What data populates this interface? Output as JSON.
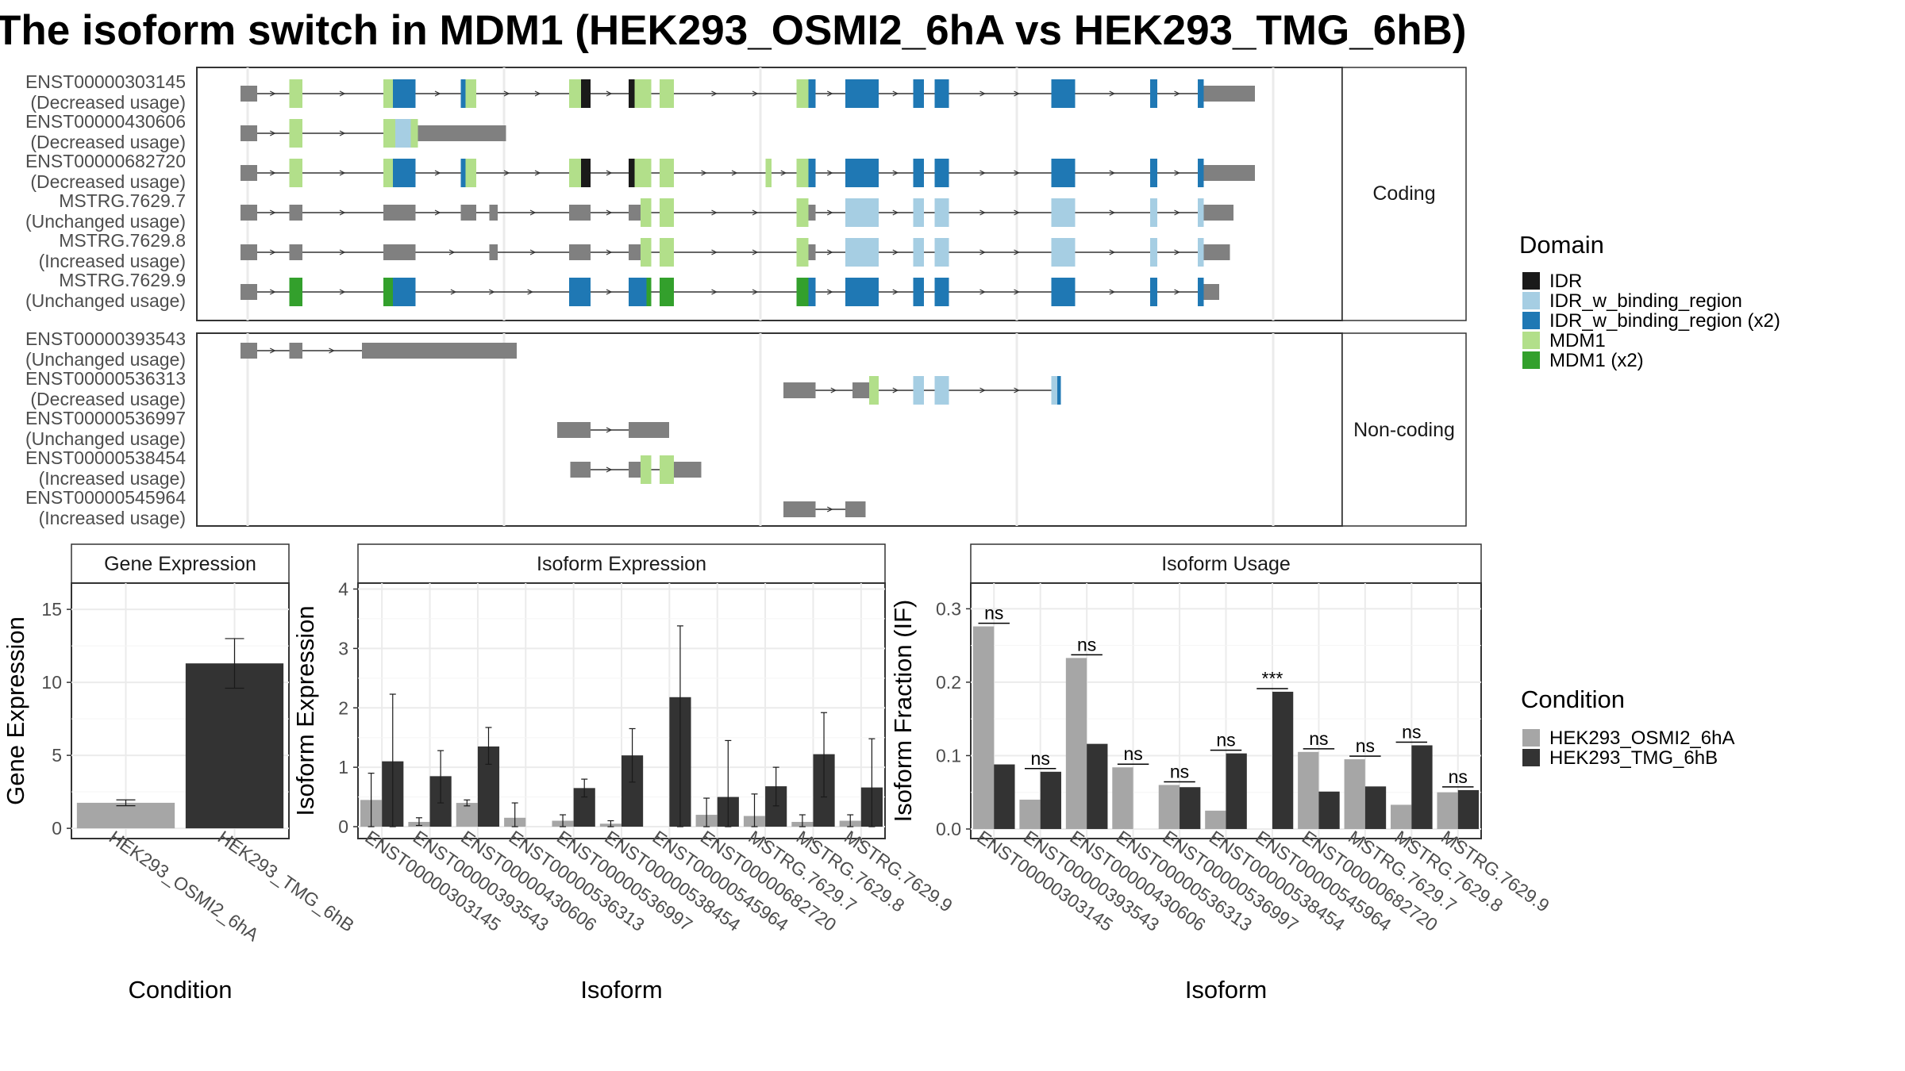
{
  "title": "The isoform switch in MDM1 (HEK293_OSMI2_6hA vs HEK293_TMG_6hB)",
  "colors": {
    "IDR": "#1a1a1a",
    "IDR_w_binding_region": "#a6cee3",
    "IDR_w_binding_region (x2)": "#1f78b4",
    "MDM1": "#b2df8a",
    "MDM1 (x2)": "#33a02c",
    "exon": "#808080",
    "cond_A": "#a6a6a6",
    "cond_B": "#333333"
  },
  "domain_legend": {
    "title": "Domain",
    "items": [
      {
        "label": "IDR",
        "color_key": "IDR"
      },
      {
        "label": "IDR_w_binding_region",
        "color_key": "IDR_w_binding_region"
      },
      {
        "label": "IDR_w_binding_region (x2)",
        "color_key": "IDR_w_binding_region (x2)"
      },
      {
        "label": "MDM1",
        "color_key": "MDM1"
      },
      {
        "label": "MDM1 (x2)",
        "color_key": "MDM1 (x2)"
      }
    ]
  },
  "condition_legend": {
    "title": "Condition",
    "items": [
      {
        "label": "HEK293_OSMI2_6hA",
        "color_key": "cond_A"
      },
      {
        "label": "HEK293_TMG_6hB",
        "color_key": "cond_B"
      }
    ]
  },
  "structure_panels": [
    {
      "label": "Coding"
    },
    {
      "label": "Non-coding"
    }
  ],
  "transcripts": [
    {
      "panel": 0,
      "name": "ENST00000303145",
      "usage": "(Decreased usage)",
      "span": [
        212,
        1054
      ],
      "exons": [
        [
          202,
          216
        ],
        [
          243,
          254
        ],
        [
          322,
          330
        ],
        [
          330,
          349
        ],
        [
          387,
          391
        ],
        [
          391,
          400
        ],
        [
          478,
          488
        ],
        [
          488,
          496
        ],
        [
          528,
          533
        ],
        [
          533,
          547
        ],
        [
          554,
          566
        ],
        [
          669,
          679
        ],
        [
          679,
          685
        ],
        [
          710,
          738
        ],
        [
          767,
          776
        ],
        [
          785,
          797
        ],
        [
          883,
          903
        ],
        [
          966,
          972
        ],
        [
          1006,
          1011
        ],
        [
          1011,
          1018
        ],
        [
          1018,
          1054
        ]
      ],
      "colors": [
        "exon",
        "MDM1",
        "MDM1",
        "IDR_w_binding_region (x2)",
        "IDR_w_binding_region (x2)",
        "MDM1",
        "MDM1",
        "IDR",
        "IDR",
        "MDM1",
        "MDM1",
        "MDM1",
        "IDR_w_binding_region (x2)",
        "IDR_w_binding_region (x2)",
        "IDR_w_binding_region (x2)",
        "IDR_w_binding_region (x2)",
        "IDR_w_binding_region (x2)",
        "IDR_w_binding_region (x2)",
        "IDR_w_binding_region (x2)",
        "exon",
        "exon"
      ]
    },
    {
      "panel": 0,
      "name": "ENST00000430606",
      "usage": "(Decreased usage)",
      "span": [
        212,
        425
      ],
      "exons": [
        [
          202,
          216
        ],
        [
          243,
          254
        ],
        [
          322,
          332
        ],
        [
          332,
          345
        ],
        [
          345,
          351
        ],
        [
          351,
          362
        ],
        [
          362,
          425
        ]
      ],
      "colors": [
        "exon",
        "MDM1",
        "MDM1",
        "IDR_w_binding_region",
        "MDM1",
        "exon",
        "exon"
      ]
    },
    {
      "panel": 0,
      "name": "ENST00000682720",
      "usage": "(Decreased usage)",
      "span": [
        212,
        1054
      ],
      "exons": [
        [
          202,
          216
        ],
        [
          243,
          254
        ],
        [
          322,
          330
        ],
        [
          330,
          349
        ],
        [
          387,
          391
        ],
        [
          391,
          400
        ],
        [
          478,
          488
        ],
        [
          488,
          496
        ],
        [
          528,
          533
        ],
        [
          533,
          547
        ],
        [
          554,
          566
        ],
        [
          643,
          648
        ],
        [
          669,
          679
        ],
        [
          679,
          685
        ],
        [
          710,
          738
        ],
        [
          767,
          776
        ],
        [
          785,
          797
        ],
        [
          883,
          903
        ],
        [
          966,
          972
        ],
        [
          1006,
          1011
        ],
        [
          1011,
          1018
        ],
        [
          1018,
          1054
        ]
      ],
      "colors": [
        "exon",
        "MDM1",
        "MDM1",
        "IDR_w_binding_region (x2)",
        "IDR_w_binding_region (x2)",
        "MDM1",
        "MDM1",
        "IDR",
        "IDR",
        "MDM1",
        "MDM1",
        "MDM1",
        "MDM1",
        "IDR_w_binding_region (x2)",
        "IDR_w_binding_region (x2)",
        "IDR_w_binding_region (x2)",
        "IDR_w_binding_region (x2)",
        "IDR_w_binding_region (x2)",
        "IDR_w_binding_region (x2)",
        "IDR_w_binding_region (x2)",
        "exon",
        "exon"
      ]
    },
    {
      "panel": 0,
      "name": "MSTRG.7629.7",
      "usage": "(Unchanged usage)",
      "span": [
        212,
        1036
      ],
      "exons": [
        [
          202,
          216
        ],
        [
          243,
          254
        ],
        [
          322,
          349
        ],
        [
          387,
          400
        ],
        [
          411,
          418
        ],
        [
          478,
          496
        ],
        [
          528,
          538
        ],
        [
          538,
          547
        ],
        [
          554,
          566
        ],
        [
          669,
          679
        ],
        [
          679,
          685
        ],
        [
          710,
          738
        ],
        [
          767,
          776
        ],
        [
          785,
          797
        ],
        [
          883,
          903
        ],
        [
          966,
          972
        ],
        [
          1006,
          1011
        ],
        [
          1011,
          1036
        ]
      ],
      "colors": [
        "exon",
        "exon",
        "exon",
        "exon",
        "exon",
        "exon",
        "exon",
        "MDM1",
        "MDM1",
        "MDM1",
        "exon",
        "IDR_w_binding_region",
        "IDR_w_binding_region",
        "IDR_w_binding_region",
        "IDR_w_binding_region",
        "IDR_w_binding_region",
        "IDR_w_binding_region",
        "exon"
      ]
    },
    {
      "panel": 0,
      "name": "MSTRG.7629.8",
      "usage": "(Increased usage)",
      "span": [
        212,
        1033
      ],
      "exons": [
        [
          202,
          216
        ],
        [
          243,
          254
        ],
        [
          322,
          349
        ],
        [
          411,
          418
        ],
        [
          478,
          496
        ],
        [
          528,
          538
        ],
        [
          538,
          547
        ],
        [
          554,
          566
        ],
        [
          669,
          679
        ],
        [
          679,
          685
        ],
        [
          710,
          738
        ],
        [
          767,
          776
        ],
        [
          785,
          797
        ],
        [
          883,
          903
        ],
        [
          966,
          972
        ],
        [
          1006,
          1011
        ],
        [
          1011,
          1033
        ]
      ],
      "colors": [
        "exon",
        "exon",
        "exon",
        "exon",
        "exon",
        "exon",
        "MDM1",
        "MDM1",
        "MDM1",
        "exon",
        "IDR_w_binding_region",
        "IDR_w_binding_region",
        "IDR_w_binding_region",
        "IDR_w_binding_region",
        "IDR_w_binding_region",
        "IDR_w_binding_region",
        "exon"
      ]
    },
    {
      "panel": 0,
      "name": "MSTRG.7629.9",
      "usage": "(Unchanged usage)",
      "span": [
        212,
        1024
      ],
      "exons": [
        [
          202,
          216
        ],
        [
          243,
          254
        ],
        [
          322,
          330
        ],
        [
          330,
          349
        ],
        [
          478,
          496
        ],
        [
          528,
          543
        ],
        [
          543,
          547
        ],
        [
          554,
          566
        ],
        [
          669,
          679
        ],
        [
          679,
          685
        ],
        [
          710,
          738
        ],
        [
          767,
          776
        ],
        [
          785,
          797
        ],
        [
          883,
          903
        ],
        [
          966,
          972
        ],
        [
          1006,
          1011
        ],
        [
          1011,
          1024
        ]
      ],
      "colors": [
        "exon",
        "MDM1 (x2)",
        "MDM1 (x2)",
        "IDR_w_binding_region (x2)",
        "IDR_w_binding_region (x2)",
        "IDR_w_binding_region (x2)",
        "MDM1 (x2)",
        "MDM1 (x2)",
        "MDM1 (x2)",
        "IDR_w_binding_region (x2)",
        "IDR_w_binding_region (x2)",
        "IDR_w_binding_region (x2)",
        "IDR_w_binding_region (x2)",
        "IDR_w_binding_region (x2)",
        "IDR_w_binding_region (x2)",
        "IDR_w_binding_region (x2)",
        "exon"
      ]
    },
    {
      "panel": 1,
      "name": "ENST00000393543",
      "usage": "(Unchanged usage)",
      "span": [
        212,
        434
      ],
      "exons": [
        [
          202,
          216
        ],
        [
          243,
          254
        ],
        [
          304,
          434
        ]
      ],
      "colors": [
        "exon",
        "exon",
        "exon"
      ]
    },
    {
      "panel": 1,
      "name": "ENST00000536313",
      "usage": "(Decreased usage)",
      "span": [
        685,
        891
      ],
      "exons": [
        [
          658,
          685
        ],
        [
          716,
          730
        ],
        [
          730,
          738
        ],
        [
          767,
          776
        ],
        [
          785,
          797
        ],
        [
          883,
          888
        ],
        [
          888,
          891
        ]
      ],
      "colors": [
        "exon",
        "exon",
        "MDM1",
        "IDR_w_binding_region",
        "IDR_w_binding_region",
        "IDR_w_binding_region",
        "IDR_w_binding_region (x2)"
      ]
    },
    {
      "panel": 1,
      "name": "ENST00000536997",
      "usage": "(Unchanged usage)",
      "span": [
        496,
        562
      ],
      "exons": [
        [
          468,
          496
        ],
        [
          528,
          562
        ]
      ],
      "colors": [
        "exon",
        "exon"
      ]
    },
    {
      "panel": 1,
      "name": "ENST00000538454",
      "usage": "(Increased usage)",
      "span": [
        496,
        589
      ],
      "exons": [
        [
          479,
          496
        ],
        [
          528,
          538
        ],
        [
          538,
          547
        ],
        [
          554,
          566
        ],
        [
          566,
          573
        ],
        [
          573,
          589
        ]
      ],
      "colors": [
        "exon",
        "exon",
        "MDM1",
        "MDM1",
        "exon",
        "exon"
      ]
    },
    {
      "panel": 1,
      "name": "ENST00000545964",
      "usage": "(Increased usage)",
      "span": [
        685,
        727
      ],
      "exons": [
        [
          658,
          685
        ],
        [
          710,
          727
        ]
      ],
      "colors": [
        "exon",
        "exon"
      ]
    }
  ],
  "chart_data": [
    {
      "type": "bar",
      "title": "Gene Expression",
      "xlabel": "Condition",
      "ylabel": "Gene Expression",
      "categories": [
        "HEK293_OSMI2_6hA",
        "HEK293_TMG_6hB"
      ],
      "values": [
        1.75,
        11.3
      ],
      "errors": [
        [
          1.55,
          1.95
        ],
        [
          9.6,
          13.0
        ]
      ],
      "ylim": [
        -0.7,
        16.8
      ],
      "yticks": [
        0,
        5,
        10,
        15
      ]
    },
    {
      "type": "bar",
      "title": "Isoform Expression",
      "xlabel": "Isoform",
      "ylabel": "Isoform Expression",
      "categories": [
        "ENST00000303145",
        "ENST00000393543",
        "ENST00000430606",
        "ENST00000536313",
        "ENST00000536997",
        "ENST00000538454",
        "ENST00000545964",
        "ENST00000682720",
        "MSTRG.7629.7",
        "MSTRG.7629.8",
        "MSTRG.7629.9"
      ],
      "series": [
        {
          "name": "HEK293_OSMI2_6hA",
          "values": [
            0.45,
            0.08,
            0.4,
            0.15,
            0.1,
            0.05,
            0.0,
            0.2,
            0.18,
            0.08,
            0.1
          ],
          "errors": [
            [
              0.0,
              0.9
            ],
            [
              0.02,
              0.15
            ],
            [
              0.35,
              0.45
            ],
            [
              0.0,
              0.4
            ],
            [
              0.0,
              0.2
            ],
            [
              0.0,
              0.1
            ],
            [
              0.0,
              0.0
            ],
            [
              0.0,
              0.48
            ],
            [
              0.0,
              0.55
            ],
            [
              0.0,
              0.2
            ],
            [
              0.0,
              0.2
            ]
          ]
        },
        {
          "name": "HEK293_TMG_6hB",
          "values": [
            1.1,
            0.85,
            1.35,
            0.0,
            0.65,
            1.2,
            2.18,
            0.5,
            0.68,
            1.22,
            0.66
          ],
          "errors": [
            [
              0.0,
              2.23
            ],
            [
              0.4,
              1.28
            ],
            [
              1.05,
              1.67
            ],
            [
              0.0,
              0.0
            ],
            [
              0.5,
              0.8
            ],
            [
              0.75,
              1.65
            ],
            [
              0.0,
              3.38
            ],
            [
              0.0,
              1.45
            ],
            [
              0.35,
              1.0
            ],
            [
              0.5,
              1.92
            ],
            [
              0.0,
              1.48
            ]
          ]
        }
      ],
      "ylim": [
        -0.2,
        4.1
      ],
      "yticks": [
        0,
        1,
        2,
        3,
        4
      ]
    },
    {
      "type": "bar",
      "title": "Isoform Usage",
      "xlabel": "Isoform",
      "ylabel": "Isoform Fraction (IF)",
      "categories": [
        "ENST00000303145",
        "ENST00000393543",
        "ENST00000430606",
        "ENST00000536313",
        "ENST00000536997",
        "ENST00000538454",
        "ENST00000545964",
        "ENST00000682720",
        "MSTRG.7629.7",
        "MSTRG.7629.8",
        "MSTRG.7629.9"
      ],
      "series": [
        {
          "name": "HEK293_OSMI2_6hA",
          "values": [
            0.276,
            0.04,
            0.233,
            0.084,
            0.06,
            0.025,
            0.0,
            0.105,
            0.095,
            0.033,
            0.05
          ]
        },
        {
          "name": "HEK293_TMG_6hB",
          "values": [
            0.088,
            0.078,
            0.116,
            0.0,
            0.057,
            0.103,
            0.187,
            0.051,
            0.058,
            0.114,
            0.053
          ]
        }
      ],
      "significance": [
        "ns",
        "ns",
        "ns",
        "ns",
        "ns",
        "ns",
        "***",
        "ns",
        "ns",
        "ns",
        "ns"
      ],
      "ylim": [
        -0.013,
        0.335
      ],
      "yticks": [
        0.0,
        0.1,
        0.2,
        0.3
      ],
      "ytick_labels": [
        "0.0",
        "0.1",
        "0.2",
        "0.3"
      ]
    }
  ]
}
